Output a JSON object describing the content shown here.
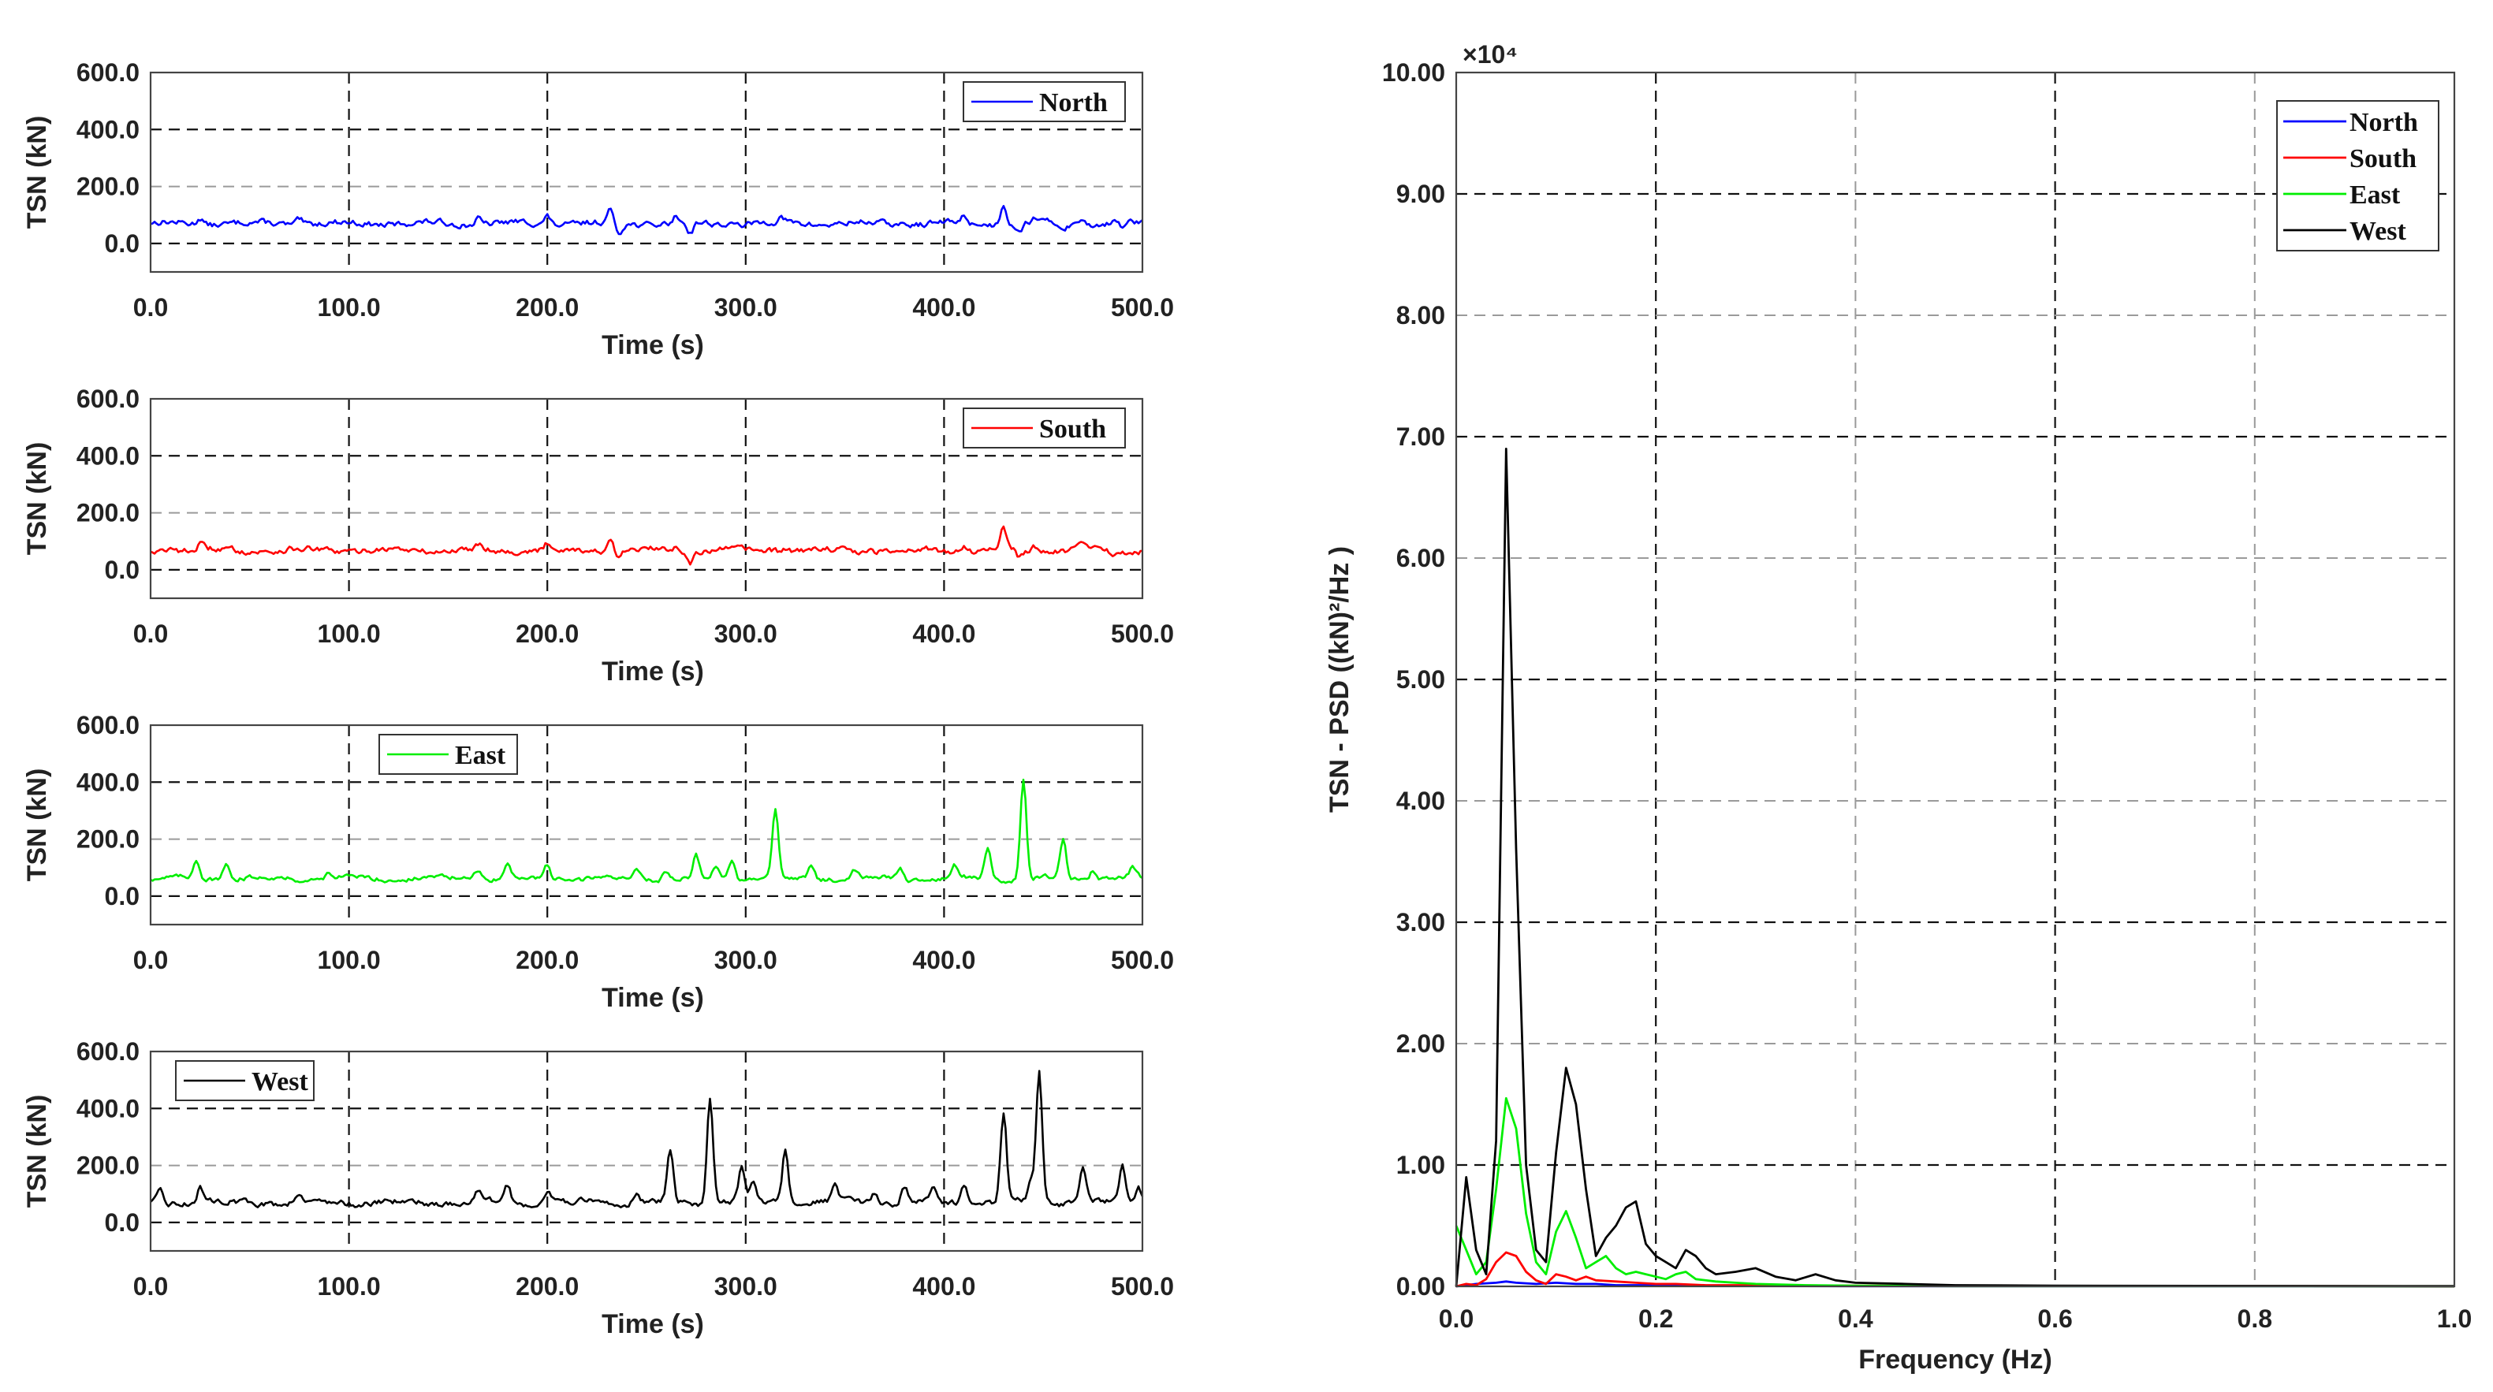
{
  "chart_data": [
    {
      "type": "line",
      "xlabel": "Time (s)",
      "ylabel": "TSN (kN)",
      "xlim": [
        0,
        500
      ],
      "ylim": [
        -100,
        600
      ],
      "xticks": [
        "0.0",
        "100.0",
        "200.0",
        "300.0",
        "400.0",
        "500.0"
      ],
      "yticks": [
        "600.0",
        "400.0",
        "200.0",
        "0.0"
      ],
      "grid": true,
      "legend": "top-right",
      "color": "#0000ff",
      "series": [
        {
          "name": "North",
          "baseline": 70,
          "noise": 12,
          "x": [],
          "values": [],
          "peaks": [
            [
              25,
              25
            ],
            [
              75,
              18
            ],
            [
              165,
              22
            ],
            [
              200,
              28
            ],
            [
              232,
              42
            ],
            [
              236,
              -35
            ],
            [
              265,
              22
            ],
            [
              272,
              -38
            ],
            [
              318,
              15
            ],
            [
              410,
              22
            ],
            [
              430,
              75
            ],
            [
              438,
              -25
            ],
            [
              446,
              18
            ],
            [
              460,
              -15
            ],
            [
              470,
              20
            ],
            [
              490,
              -15
            ]
          ]
        }
      ]
    },
    {
      "type": "line",
      "xlabel": "Time (s)",
      "ylabel": "TSN (kN)",
      "xlim": [
        0,
        500
      ],
      "ylim": [
        -100,
        600
      ],
      "xticks": [
        "0.0",
        "100.0",
        "200.0",
        "300.0",
        "400.0",
        "500.0"
      ],
      "yticks": [
        "600.0",
        "400.0",
        "200.0",
        "0.0"
      ],
      "grid": true,
      "legend": "top-right",
      "color": "#ff0000",
      "series": [
        {
          "name": "South",
          "baseline": 68,
          "noise": 12,
          "x": [],
          "values": [],
          "peaks": [
            [
              12,
              18
            ],
            [
              25,
              20
            ],
            [
              165,
              22
            ],
            [
              200,
              25
            ],
            [
              232,
              40
            ],
            [
              236,
              -30
            ],
            [
              265,
              20
            ],
            [
              272,
              -35
            ],
            [
              320,
              14
            ],
            [
              410,
              22
            ],
            [
              430,
              80
            ],
            [
              438,
              -25
            ],
            [
              446,
              18
            ],
            [
              470,
              18
            ],
            [
              485,
              -15
            ]
          ]
        }
      ]
    },
    {
      "type": "line",
      "xlabel": "Time (s)",
      "ylabel": "TSN (kN)",
      "xlim": [
        0,
        500
      ],
      "ylim": [
        -100,
        600
      ],
      "xticks": [
        "0.0",
        "100.0",
        "200.0",
        "300.0",
        "400.0",
        "500.0"
      ],
      "yticks": [
        "600.0",
        "400.0",
        "200.0",
        "0.0"
      ],
      "grid": true,
      "legend": "top-left",
      "color": "#00ee00",
      "series": [
        {
          "name": "East",
          "baseline": 62,
          "noise": 9,
          "x": [],
          "values": [],
          "peaks": [
            [
              23,
              70
            ],
            [
              38,
              50
            ],
            [
              90,
              25
            ],
            [
              165,
              35
            ],
            [
              180,
              50
            ],
            [
              200,
              45
            ],
            [
              245,
              40
            ],
            [
              260,
              30
            ],
            [
              275,
              80
            ],
            [
              285,
              45
            ],
            [
              293,
              60
            ],
            [
              315,
              230
            ],
            [
              333,
              50
            ],
            [
              355,
              30
            ],
            [
              378,
              40
            ],
            [
              405,
              45
            ],
            [
              422,
              110
            ],
            [
              440,
              350
            ],
            [
              460,
              130
            ],
            [
              475,
              30
            ],
            [
              495,
              30
            ]
          ]
        }
      ]
    },
    {
      "type": "line",
      "xlabel": "Time (s)",
      "ylabel": "TSN (kN)",
      "xlim": [
        0,
        500
      ],
      "ylim": [
        -100,
        600
      ],
      "xticks": [
        "0.0",
        "100.0",
        "200.0",
        "300.0",
        "400.0",
        "500.0"
      ],
      "yticks": [
        "600.0",
        "400.0",
        "200.0",
        "0.0"
      ],
      "grid": true,
      "legend": "top-left",
      "color": "#000000",
      "series": [
        {
          "name": "West",
          "baseline": 70,
          "noise": 12,
          "x": [],
          "values": [],
          "peaks": [
            [
              5,
              35
            ],
            [
              25,
              60
            ],
            [
              75,
              35
            ],
            [
              165,
              40
            ],
            [
              180,
              55
            ],
            [
              200,
              45
            ],
            [
              245,
              40
            ],
            [
              262,
              180
            ],
            [
              282,
              380
            ],
            [
              298,
              120
            ],
            [
              304,
              70
            ],
            [
              320,
              190
            ],
            [
              345,
              50
            ],
            [
              365,
              40
            ],
            [
              380,
              55
            ],
            [
              395,
              40
            ],
            [
              410,
              70
            ],
            [
              430,
              310
            ],
            [
              444,
              70
            ],
            [
              448,
              450
            ],
            [
              470,
              110
            ],
            [
              490,
              130
            ],
            [
              498,
              60
            ]
          ]
        }
      ]
    },
    {
      "type": "line",
      "xlabel": "Frequency (Hz)",
      "ylabel": "TSN - PSD ((kN)²/Hz )",
      "multiplier": "×10⁴",
      "xlim": [
        0,
        1
      ],
      "ylim": [
        0,
        10
      ],
      "xticks": [
        "0.0",
        "0.2",
        "0.4",
        "0.6",
        "0.8",
        "1.0"
      ],
      "yticks": [
        "10.00",
        "9.00",
        "8.00",
        "7.00",
        "6.00",
        "5.00",
        "4.00",
        "3.00",
        "2.00",
        "1.00",
        "0.00"
      ],
      "grid": true,
      "legend": "top-right",
      "series": [
        {
          "name": "North",
          "color": "#0000ff",
          "x": [
            0,
            0.02,
            0.04,
            0.05,
            0.06,
            0.08,
            0.1,
            0.12,
            0.14,
            0.16,
            0.18,
            0.2,
            0.25,
            0.3,
            0.4,
            1.0
          ],
          "values": [
            0,
            0.02,
            0.03,
            0.04,
            0.03,
            0.02,
            0.03,
            0.02,
            0.02,
            0.01,
            0.01,
            0.01,
            0.005,
            0.004,
            0.002,
            0.001
          ]
        },
        {
          "name": "South",
          "color": "#ff0000",
          "x": [
            0,
            0.01,
            0.02,
            0.03,
            0.04,
            0.05,
            0.06,
            0.07,
            0.08,
            0.09,
            0.1,
            0.11,
            0.12,
            0.13,
            0.14,
            0.16,
            0.18,
            0.2,
            0.22,
            0.25,
            0.3,
            0.4,
            1.0
          ],
          "values": [
            0,
            0.02,
            0.01,
            0.06,
            0.2,
            0.28,
            0.25,
            0.12,
            0.05,
            0.02,
            0.1,
            0.08,
            0.05,
            0.08,
            0.05,
            0.04,
            0.03,
            0.02,
            0.02,
            0.01,
            0.01,
            0.005,
            0.001
          ]
        },
        {
          "name": "East",
          "color": "#00ee00",
          "x": [
            0,
            0.01,
            0.02,
            0.03,
            0.04,
            0.05,
            0.06,
            0.07,
            0.08,
            0.09,
            0.1,
            0.11,
            0.12,
            0.13,
            0.14,
            0.15,
            0.16,
            0.17,
            0.18,
            0.19,
            0.2,
            0.21,
            0.22,
            0.23,
            0.24,
            0.26,
            0.28,
            0.3,
            0.35,
            0.4,
            0.5,
            1.0
          ],
          "values": [
            0.5,
            0.3,
            0.1,
            0.2,
            0.8,
            1.55,
            1.3,
            0.6,
            0.2,
            0.1,
            0.45,
            0.62,
            0.4,
            0.15,
            0.2,
            0.25,
            0.15,
            0.1,
            0.12,
            0.1,
            0.08,
            0.06,
            0.1,
            0.12,
            0.06,
            0.04,
            0.03,
            0.02,
            0.01,
            0.005,
            0.002,
            0.001
          ]
        },
        {
          "name": "West",
          "color": "#000000",
          "x": [
            0,
            0.01,
            0.02,
            0.03,
            0.04,
            0.05,
            0.06,
            0.07,
            0.08,
            0.09,
            0.1,
            0.11,
            0.12,
            0.13,
            0.14,
            0.15,
            0.16,
            0.17,
            0.18,
            0.19,
            0.2,
            0.21,
            0.22,
            0.23,
            0.24,
            0.25,
            0.26,
            0.28,
            0.3,
            0.32,
            0.34,
            0.36,
            0.38,
            0.4,
            0.45,
            0.5,
            0.6,
            1.0
          ],
          "values": [
            0,
            0.9,
            0.3,
            0.1,
            1.2,
            6.9,
            3.6,
            1.0,
            0.3,
            0.2,
            1.1,
            1.8,
            1.5,
            0.8,
            0.25,
            0.4,
            0.5,
            0.65,
            0.7,
            0.35,
            0.25,
            0.2,
            0.15,
            0.3,
            0.25,
            0.15,
            0.1,
            0.12,
            0.15,
            0.08,
            0.05,
            0.1,
            0.05,
            0.03,
            0.02,
            0.01,
            0.005,
            0.001
          ]
        }
      ]
    }
  ]
}
